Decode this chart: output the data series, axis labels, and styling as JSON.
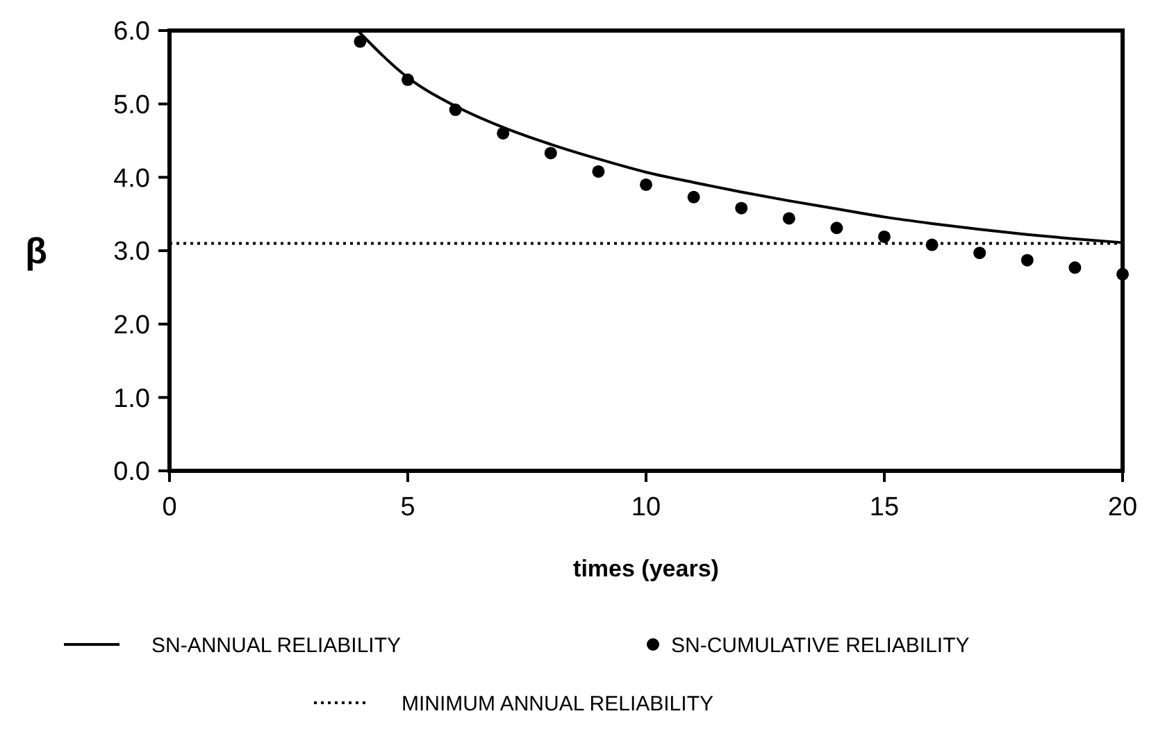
{
  "chart_data": {
    "type": "line",
    "xlabel": "times (years)",
    "ylabel": "β",
    "xlim": [
      0,
      20
    ],
    "xticks": [
      0,
      5,
      10,
      15,
      20
    ],
    "ylim": [
      0,
      6
    ],
    "yticks": [
      {
        "value": 0,
        "label": "0.0"
      },
      {
        "value": 1,
        "label": "1.0"
      },
      {
        "value": 2,
        "label": "2.0"
      },
      {
        "value": 3,
        "label": "3.0"
      },
      {
        "value": 4,
        "label": "4.0"
      },
      {
        "value": 5,
        "label": "5.0"
      },
      {
        "value": 6,
        "label": "6.0"
      }
    ],
    "grid": false,
    "legend": "bottom",
    "series": [
      {
        "name": "SN-ANNUAL RELIABILITY",
        "color": "#000000",
        "marker": "none",
        "line_style": "solid",
        "x": [
          3.95,
          5,
          6,
          7,
          8,
          9,
          10,
          11,
          12,
          13,
          14,
          15,
          16,
          17,
          18,
          19,
          20
        ],
        "values": [
          6.0,
          5.36,
          4.97,
          4.68,
          4.45,
          4.25,
          4.07,
          3.93,
          3.8,
          3.68,
          3.57,
          3.46,
          3.37,
          3.29,
          3.22,
          3.16,
          3.11
        ]
      },
      {
        "name": "SN-CUMULATIVE RELIABILITY",
        "type": "scatter",
        "color": "#000000",
        "marker": "circle",
        "x": [
          4,
          5,
          6,
          7,
          8,
          9,
          10,
          11,
          12,
          13,
          14,
          15,
          16,
          17,
          18,
          19,
          20
        ],
        "values": [
          5.85,
          5.33,
          4.92,
          4.6,
          4.33,
          4.08,
          3.9,
          3.73,
          3.58,
          3.44,
          3.31,
          3.19,
          3.08,
          2.97,
          2.87,
          2.77,
          2.68
        ]
      }
    ],
    "ref_lines": [
      {
        "axis": "y",
        "value": 3.1,
        "label": "MINIMUM ANNUAL RELIABILITY",
        "color": "#000000",
        "line_style": "dotted"
      }
    ]
  }
}
